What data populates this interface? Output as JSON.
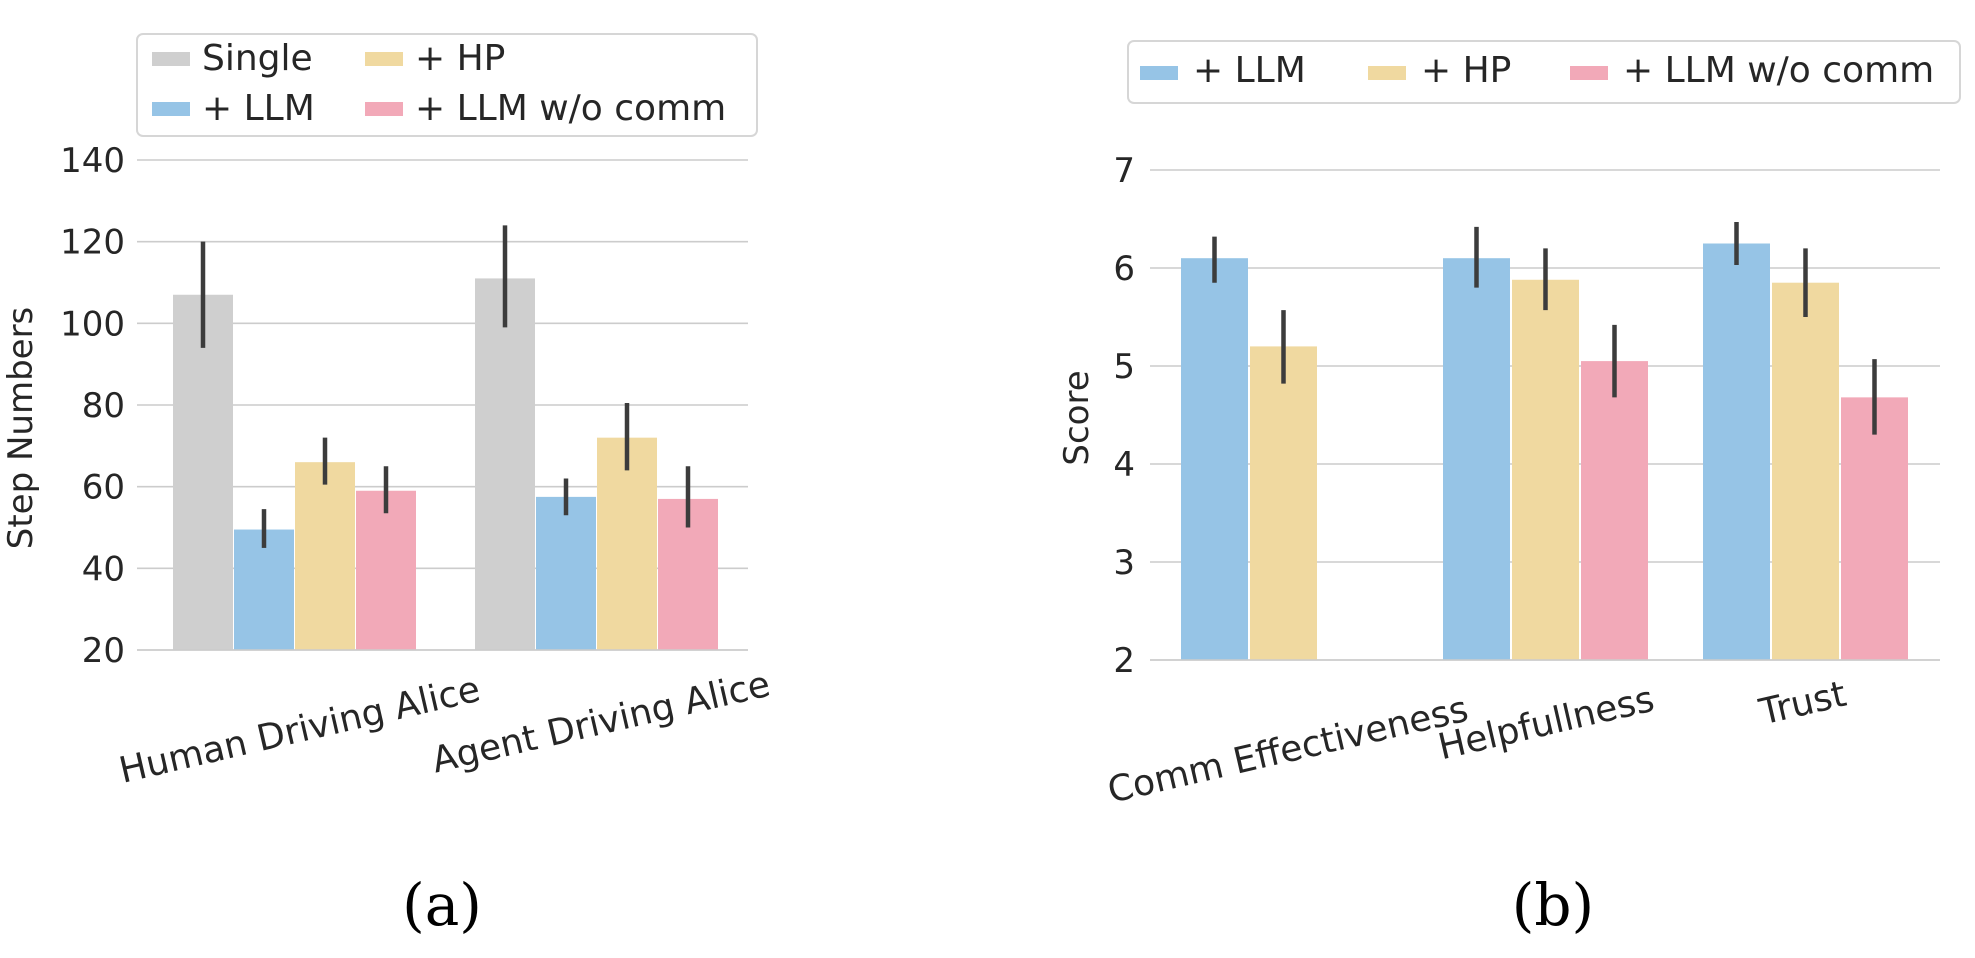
{
  "chart_data": [
    {
      "panel_label": "(a)",
      "type": "bar",
      "ylabel": "Step Numbers",
      "xlabel": "",
      "ylim": [
        20,
        140
      ],
      "yticks": [
        20,
        40,
        60,
        80,
        100,
        120,
        140
      ],
      "grid": true,
      "legend_position": "top",
      "categories": [
        "Human Driving Alice",
        "Agent Driving Alice"
      ],
      "series": [
        {
          "name": "Single",
          "color": "#cfcfcf",
          "values": [
            107,
            111
          ],
          "err_low": [
            94,
            99
          ],
          "err_high": [
            120,
            124
          ]
        },
        {
          "name": "+ LLM",
          "color": "#96c4e6",
          "values": [
            49.5,
            57.5
          ],
          "err_low": [
            45,
            53
          ],
          "err_high": [
            54.5,
            62
          ]
        },
        {
          "name": "+ HP",
          "color": "#f0d9a0",
          "values": [
            66,
            72
          ],
          "err_low": [
            60.5,
            64
          ],
          "err_high": [
            72,
            80.5
          ]
        },
        {
          "name": "+ LLM w/o comm",
          "color": "#f2a9b8",
          "values": [
            59,
            57
          ],
          "err_low": [
            53.5,
            50
          ],
          "err_high": [
            65,
            65
          ]
        }
      ]
    },
    {
      "panel_label": "(b)",
      "type": "bar",
      "ylabel": "Score",
      "xlabel": "",
      "ylim": [
        2,
        7
      ],
      "yticks": [
        2,
        3,
        4,
        5,
        6,
        7
      ],
      "grid": true,
      "legend_position": "top",
      "categories": [
        "Comm Effectiveness",
        "Helpfullness",
        "Trust"
      ],
      "series": [
        {
          "name": "+ LLM",
          "color": "#96c4e6",
          "values": [
            6.1,
            6.1,
            6.25
          ],
          "err_low": [
            5.85,
            5.8,
            6.03
          ],
          "err_high": [
            6.32,
            6.42,
            6.47
          ]
        },
        {
          "name": "+ HP",
          "color": "#f0d9a0",
          "values": [
            5.2,
            5.88,
            5.85
          ],
          "err_low": [
            4.82,
            5.57,
            5.5
          ],
          "err_high": [
            5.57,
            6.2,
            6.2
          ]
        },
        {
          "name": "+ LLM w/o comm",
          "color": "#f2a9b8",
          "values": [
            null,
            5.05,
            4.68
          ],
          "err_low": [
            null,
            4.68,
            4.3
          ],
          "err_high": [
            null,
            5.42,
            5.07
          ]
        }
      ]
    }
  ]
}
